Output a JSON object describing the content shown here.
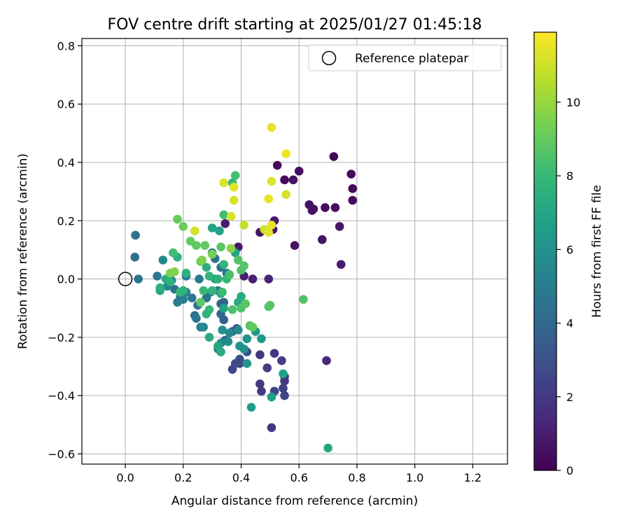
{
  "chart_data": {
    "type": "scatter",
    "title": "FOV centre drift starting at 2025/01/27 01:45:18",
    "xlabel": "Angular distance from reference (arcmin)",
    "ylabel": "Rotation from reference (arcmin)",
    "xlim": [
      -0.15,
      1.32
    ],
    "ylim": [
      -0.635,
      0.825
    ],
    "xticks": [
      0.0,
      0.2,
      0.4,
      0.6,
      0.8,
      1.0,
      1.2
    ],
    "xtick_labels": [
      "0.0",
      "0.2",
      "0.4",
      "0.6",
      "0.8",
      "1.0",
      "1.2"
    ],
    "yticks": [
      -0.6,
      -0.4,
      -0.2,
      0.0,
      0.2,
      0.4,
      0.6,
      0.8
    ],
    "ytick_labels": [
      "−0.6",
      "−0.4",
      "−0.2",
      "0.0",
      "0.2",
      "0.4",
      "0.6",
      "0.8"
    ],
    "grid": true,
    "legend": {
      "placement": "top-right",
      "entries": [
        "Reference platepar"
      ]
    },
    "reference_point": {
      "x": 0.0,
      "y": 0.0,
      "label": "Reference platepar"
    },
    "colorbar": {
      "label": "Hours from first FF file",
      "min": 0,
      "max": 11.9,
      "ticks": [
        0,
        2,
        4,
        6,
        8,
        10
      ],
      "tick_labels": [
        "0",
        "2",
        "4",
        "6",
        "8",
        "10"
      ],
      "colormap": "viridis",
      "stops": [
        "#440154",
        "#482878",
        "#3e4989",
        "#31688e",
        "#26828e",
        "#1f9e89",
        "#35b779",
        "#6ece58",
        "#b5de2b",
        "#fde725"
      ]
    },
    "points": [
      {
        "x": 0.72,
        "y": 0.42,
        "h": 0.2
      },
      {
        "x": 0.78,
        "y": 0.36,
        "h": 0.3
      },
      {
        "x": 0.785,
        "y": 0.31,
        "h": 0.2
      },
      {
        "x": 0.785,
        "y": 0.27,
        "h": 0.4
      },
      {
        "x": 0.55,
        "y": 0.34,
        "h": 0.3
      },
      {
        "x": 0.58,
        "y": 0.34,
        "h": 0.5
      },
      {
        "x": 0.6,
        "y": 0.37,
        "h": 0.4
      },
      {
        "x": 0.525,
        "y": 0.39,
        "h": 0.2
      },
      {
        "x": 0.635,
        "y": 0.255,
        "h": 0.6
      },
      {
        "x": 0.645,
        "y": 0.235,
        "h": 0.7
      },
      {
        "x": 0.65,
        "y": 0.24,
        "h": 0.5
      },
      {
        "x": 0.69,
        "y": 0.245,
        "h": 0.4
      },
      {
        "x": 0.725,
        "y": 0.245,
        "h": 0.5
      },
      {
        "x": 0.74,
        "y": 0.18,
        "h": 0.7
      },
      {
        "x": 0.745,
        "y": 0.05,
        "h": 0.9
      },
      {
        "x": 0.68,
        "y": 0.135,
        "h": 0.6
      },
      {
        "x": 0.585,
        "y": 0.115,
        "h": 0.6
      },
      {
        "x": 0.515,
        "y": 0.2,
        "h": 0.8
      },
      {
        "x": 0.51,
        "y": 0.17,
        "h": 0.7
      },
      {
        "x": 0.465,
        "y": 0.16,
        "h": 0.6
      },
      {
        "x": 0.495,
        "y": 0.0,
        "h": 1.2
      },
      {
        "x": 0.695,
        "y": -0.28,
        "h": 1.3
      },
      {
        "x": 0.39,
        "y": 0.11,
        "h": 0.8
      },
      {
        "x": 0.41,
        "y": 0.01,
        "h": 1.0
      },
      {
        "x": 0.44,
        "y": 0.0,
        "h": 1.1
      },
      {
        "x": 0.345,
        "y": 0.19,
        "h": 1.0
      },
      {
        "x": 0.465,
        "y": -0.26,
        "h": 1.8
      },
      {
        "x": 0.515,
        "y": -0.255,
        "h": 2.0
      },
      {
        "x": 0.54,
        "y": -0.28,
        "h": 2.2
      },
      {
        "x": 0.49,
        "y": -0.305,
        "h": 2.3
      },
      {
        "x": 0.465,
        "y": -0.36,
        "h": 2.1
      },
      {
        "x": 0.47,
        "y": -0.385,
        "h": 2.0
      },
      {
        "x": 0.515,
        "y": -0.385,
        "h": 2.4
      },
      {
        "x": 0.55,
        "y": -0.335,
        "h": 2.2
      },
      {
        "x": 0.55,
        "y": -0.35,
        "h": 2.0
      },
      {
        "x": 0.545,
        "y": -0.375,
        "h": 2.3
      },
      {
        "x": 0.55,
        "y": -0.4,
        "h": 2.4
      },
      {
        "x": 0.505,
        "y": -0.51,
        "h": 2.0
      },
      {
        "x": 0.37,
        "y": -0.31,
        "h": 2.5
      },
      {
        "x": 0.38,
        "y": -0.29,
        "h": 2.7
      },
      {
        "x": 0.395,
        "y": -0.275,
        "h": 2.8
      },
      {
        "x": 0.395,
        "y": -0.29,
        "h": 2.6
      },
      {
        "x": 0.42,
        "y": -0.25,
        "h": 3.0
      },
      {
        "x": 0.385,
        "y": -0.17,
        "h": 3.2
      },
      {
        "x": 0.37,
        "y": -0.18,
        "h": 3.4
      },
      {
        "x": 0.34,
        "y": -0.14,
        "h": 3.5
      },
      {
        "x": 0.33,
        "y": -0.085,
        "h": 3.6
      },
      {
        "x": 0.34,
        "y": -0.08,
        "h": 3.8
      },
      {
        "x": 0.345,
        "y": -0.21,
        "h": 3.9
      },
      {
        "x": 0.33,
        "y": -0.12,
        "h": 4.0
      },
      {
        "x": 0.035,
        "y": 0.15,
        "h": 4.5
      },
      {
        "x": 0.033,
        "y": 0.075,
        "h": 4.3
      },
      {
        "x": 0.045,
        "y": 0.0,
        "h": 4.6
      },
      {
        "x": 0.11,
        "y": 0.01,
        "h": 4.8
      },
      {
        "x": 0.17,
        "y": -0.035,
        "h": 4.7
      },
      {
        "x": 0.19,
        "y": -0.06,
        "h": 4.5
      },
      {
        "x": 0.21,
        "y": 0.01,
        "h": 4.9
      },
      {
        "x": 0.23,
        "y": -0.065,
        "h": 4.8
      },
      {
        "x": 0.25,
        "y": -0.09,
        "h": 4.6
      },
      {
        "x": 0.24,
        "y": -0.125,
        "h": 4.4
      },
      {
        "x": 0.245,
        "y": -0.135,
        "h": 4.7
      },
      {
        "x": 0.255,
        "y": 0.0,
        "h": 4.9
      },
      {
        "x": 0.28,
        "y": -0.065,
        "h": 4.5
      },
      {
        "x": 0.31,
        "y": 0.07,
        "h": 4.4
      },
      {
        "x": 0.3,
        "y": 0.09,
        "h": 4.6
      },
      {
        "x": 0.33,
        "y": 0.04,
        "h": 4.8
      },
      {
        "x": 0.35,
        "y": 0.02,
        "h": 4.9
      },
      {
        "x": 0.295,
        "y": -0.045,
        "h": 4.7
      },
      {
        "x": 0.32,
        "y": -0.04,
        "h": 5.0
      },
      {
        "x": 0.18,
        "y": -0.08,
        "h": 5.1
      },
      {
        "x": 0.2,
        "y": -0.07,
        "h": 5.2
      },
      {
        "x": 0.21,
        "y": -0.045,
        "h": 5.3
      },
      {
        "x": 0.16,
        "y": -0.005,
        "h": 5.4
      },
      {
        "x": 0.145,
        "y": -0.025,
        "h": 5.5
      },
      {
        "x": 0.13,
        "y": 0.065,
        "h": 5.6
      },
      {
        "x": 0.26,
        "y": -0.165,
        "h": 5.4
      },
      {
        "x": 0.27,
        "y": -0.165,
        "h": 5.6
      },
      {
        "x": 0.32,
        "y": -0.24,
        "h": 5.5
      },
      {
        "x": 0.33,
        "y": -0.22,
        "h": 5.7
      },
      {
        "x": 0.355,
        "y": -0.215,
        "h": 5.8
      },
      {
        "x": 0.335,
        "y": -0.175,
        "h": 5.9
      },
      {
        "x": 0.36,
        "y": -0.185,
        "h": 5.6
      },
      {
        "x": 0.39,
        "y": -0.175,
        "h": 5.8
      },
      {
        "x": 0.395,
        "y": -0.23,
        "h": 6.0
      },
      {
        "x": 0.41,
        "y": -0.24,
        "h": 6.1
      },
      {
        "x": 0.42,
        "y": -0.205,
        "h": 6.2
      },
      {
        "x": 0.45,
        "y": -0.18,
        "h": 6.3
      },
      {
        "x": 0.47,
        "y": -0.205,
        "h": 6.4
      },
      {
        "x": 0.42,
        "y": -0.29,
        "h": 6.2
      },
      {
        "x": 0.435,
        "y": -0.44,
        "h": 6.5
      },
      {
        "x": 0.505,
        "y": -0.405,
        "h": 6.6
      },
      {
        "x": 0.545,
        "y": -0.325,
        "h": 6.7
      },
      {
        "x": 0.7,
        "y": -0.58,
        "h": 7.0
      },
      {
        "x": 0.325,
        "y": 0.165,
        "h": 6.8
      },
      {
        "x": 0.3,
        "y": 0.175,
        "h": 6.9
      },
      {
        "x": 0.38,
        "y": 0.09,
        "h": 7.0
      },
      {
        "x": 0.31,
        "y": 0.0,
        "h": 6.8
      },
      {
        "x": 0.33,
        "y": -0.05,
        "h": 7.1
      },
      {
        "x": 0.34,
        "y": -0.1,
        "h": 6.9
      },
      {
        "x": 0.39,
        "y": -0.08,
        "h": 7.2
      },
      {
        "x": 0.4,
        "y": -0.06,
        "h": 7.3
      },
      {
        "x": 0.29,
        "y": -0.2,
        "h": 7.2
      },
      {
        "x": 0.32,
        "y": -0.23,
        "h": 7.0
      },
      {
        "x": 0.33,
        "y": -0.25,
        "h": 7.3
      },
      {
        "x": 0.12,
        "y": -0.04,
        "h": 7.1
      },
      {
        "x": 0.12,
        "y": -0.03,
        "h": 7.5
      },
      {
        "x": 0.14,
        "y": 0.0,
        "h": 7.4
      },
      {
        "x": 0.155,
        "y": -0.01,
        "h": 7.6
      },
      {
        "x": 0.18,
        "y": 0.075,
        "h": 7.5
      },
      {
        "x": 0.21,
        "y": 0.02,
        "h": 7.6
      },
      {
        "x": 0.28,
        "y": 0.04,
        "h": 7.4
      },
      {
        "x": 0.29,
        "y": 0.01,
        "h": 7.7
      },
      {
        "x": 0.32,
        "y": 0.0,
        "h": 7.5
      },
      {
        "x": 0.34,
        "y": 0.05,
        "h": 7.8
      },
      {
        "x": 0.35,
        "y": 0.0,
        "h": 7.9
      },
      {
        "x": 0.28,
        "y": -0.12,
        "h": 7.7
      },
      {
        "x": 0.29,
        "y": -0.105,
        "h": 7.9
      },
      {
        "x": 0.27,
        "y": -0.04,
        "h": 8.0
      },
      {
        "x": 0.3,
        "y": -0.04,
        "h": 7.8
      },
      {
        "x": 0.335,
        "y": -0.045,
        "h": 8.1
      },
      {
        "x": 0.19,
        "y": -0.045,
        "h": 8.0
      },
      {
        "x": 0.2,
        "y": -0.04,
        "h": 7.7
      },
      {
        "x": 0.38,
        "y": 0.355,
        "h": 8.3
      },
      {
        "x": 0.37,
        "y": 0.33,
        "h": 8.0
      },
      {
        "x": 0.34,
        "y": 0.22,
        "h": 8.2
      },
      {
        "x": 0.165,
        "y": 0.09,
        "h": 8.2
      },
      {
        "x": 0.36,
        "y": 0.015,
        "h": 8.4
      },
      {
        "x": 0.4,
        "y": 0.03,
        "h": 8.5
      },
      {
        "x": 0.39,
        "y": 0.065,
        "h": 8.6
      },
      {
        "x": 0.41,
        "y": 0.045,
        "h": 8.7
      },
      {
        "x": 0.37,
        "y": -0.105,
        "h": 8.5
      },
      {
        "x": 0.4,
        "y": -0.1,
        "h": 8.6
      },
      {
        "x": 0.415,
        "y": -0.085,
        "h": 8.8
      },
      {
        "x": 0.43,
        "y": -0.16,
        "h": 8.7
      },
      {
        "x": 0.44,
        "y": -0.165,
        "h": 8.9
      },
      {
        "x": 0.495,
        "y": -0.095,
        "h": 8.8
      },
      {
        "x": 0.5,
        "y": -0.09,
        "h": 8.7
      },
      {
        "x": 0.615,
        "y": -0.07,
        "h": 8.6
      },
      {
        "x": 0.26,
        "y": -0.08,
        "h": 8.9
      },
      {
        "x": 0.33,
        "y": 0.11,
        "h": 8.8
      },
      {
        "x": 0.275,
        "y": 0.115,
        "h": 8.9
      },
      {
        "x": 0.245,
        "y": 0.115,
        "h": 9.0
      },
      {
        "x": 0.18,
        "y": 0.205,
        "h": 9.1
      },
      {
        "x": 0.2,
        "y": 0.18,
        "h": 9.2
      },
      {
        "x": 0.225,
        "y": 0.13,
        "h": 9.0
      },
      {
        "x": 0.26,
        "y": 0.06,
        "h": 9.3
      },
      {
        "x": 0.265,
        "y": 0.065,
        "h": 9.5
      },
      {
        "x": 0.3,
        "y": 0.085,
        "h": 9.4
      },
      {
        "x": 0.155,
        "y": 0.02,
        "h": 9.5
      },
      {
        "x": 0.17,
        "y": 0.025,
        "h": 9.6
      },
      {
        "x": 0.365,
        "y": 0.105,
        "h": 9.8
      },
      {
        "x": 0.41,
        "y": 0.185,
        "h": 10.8
      },
      {
        "x": 0.365,
        "y": 0.215,
        "h": 11.2
      },
      {
        "x": 0.24,
        "y": 0.165,
        "h": 11.1
      },
      {
        "x": 0.34,
        "y": 0.33,
        "h": 11.3
      },
      {
        "x": 0.375,
        "y": 0.315,
        "h": 11.4
      },
      {
        "x": 0.375,
        "y": 0.27,
        "h": 11.2
      },
      {
        "x": 0.495,
        "y": 0.275,
        "h": 11.5
      },
      {
        "x": 0.505,
        "y": 0.52,
        "h": 11.4
      },
      {
        "x": 0.555,
        "y": 0.43,
        "h": 11.6
      },
      {
        "x": 0.505,
        "y": 0.335,
        "h": 11.3
      },
      {
        "x": 0.555,
        "y": 0.29,
        "h": 11.2
      },
      {
        "x": 0.48,
        "y": 0.17,
        "h": 11.0
      },
      {
        "x": 0.495,
        "y": 0.16,
        "h": 11.4
      },
      {
        "x": 0.505,
        "y": 0.185,
        "h": 11.5
      }
    ]
  }
}
